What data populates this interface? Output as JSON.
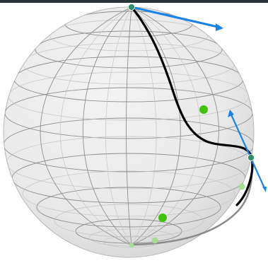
{
  "colors": {
    "header_bar": "#2b343b",
    "sphere_fill": "#e9e9e9",
    "sphere_fill_light": "#f3f3f3",
    "sphere_shade": "#d6d6d6",
    "grid_major": "#8f8f8f",
    "grid_minor": "#c4c4c4",
    "trajectory": "#000000",
    "trajectory_hidden": "#8a8a8a",
    "vector_arrow": "#1a84e6",
    "point_green": "#3fc30f",
    "point_green_faded": "#a9dd92",
    "point_teal": "#2f8f6a"
  },
  "icons": {
    "start_state": "point-circle-icon",
    "end_state": "point-circle-icon",
    "arrow_head": "arrow-head-icon"
  }
}
